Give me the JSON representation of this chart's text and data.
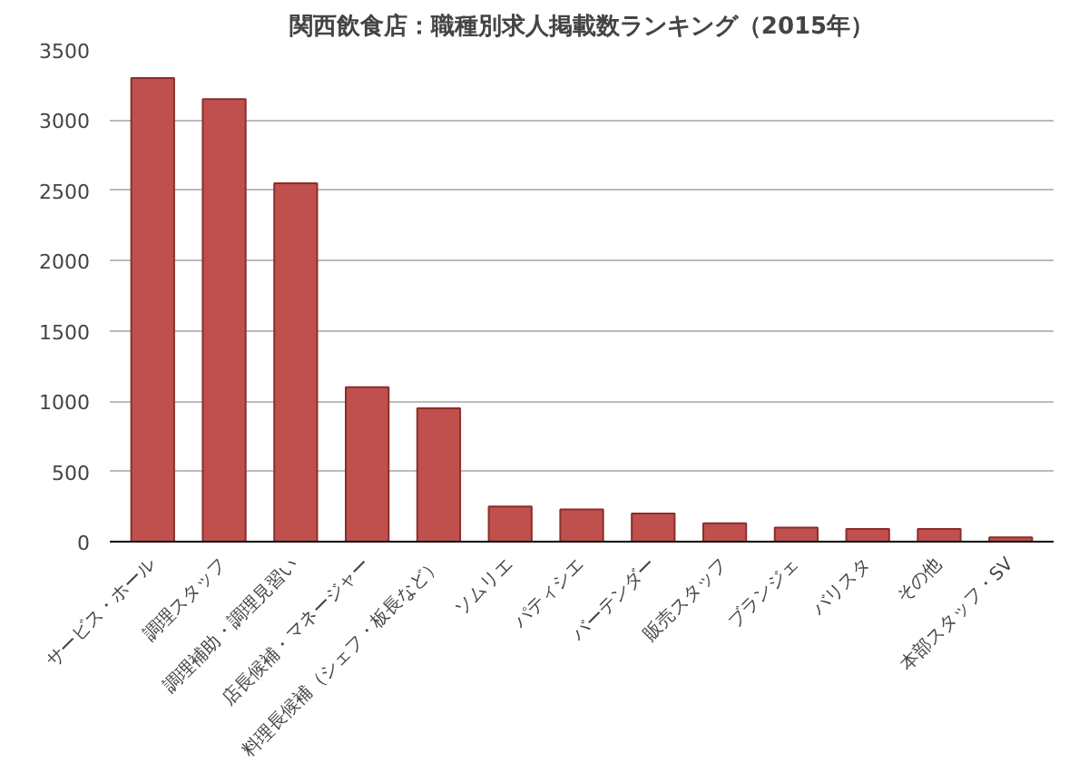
{
  "chart_data": {
    "type": "bar",
    "title": "関西飲食店：職種別求人掲載数ランキング（2015年）",
    "categories": [
      "サービス・ホール",
      "調理スタッフ",
      "調理補助・調理見習い",
      "店長候補・マネージャー",
      "料理長候補（シェフ・板長など）",
      "ソムリエ",
      "パティシエ",
      "バーテンダー",
      "販売スタッフ",
      "ブランジェ",
      "バリスタ",
      "その他",
      "本部スタッフ・SV"
    ],
    "values": [
      3300,
      3150,
      2550,
      1100,
      950,
      250,
      230,
      200,
      130,
      100,
      90,
      90,
      30
    ],
    "color": "#c0504d",
    "ylim": [
      0,
      3500
    ],
    "yticks": [
      0,
      500,
      1000,
      1500,
      2000,
      2500,
      3000,
      3500
    ],
    "grid": "y"
  }
}
